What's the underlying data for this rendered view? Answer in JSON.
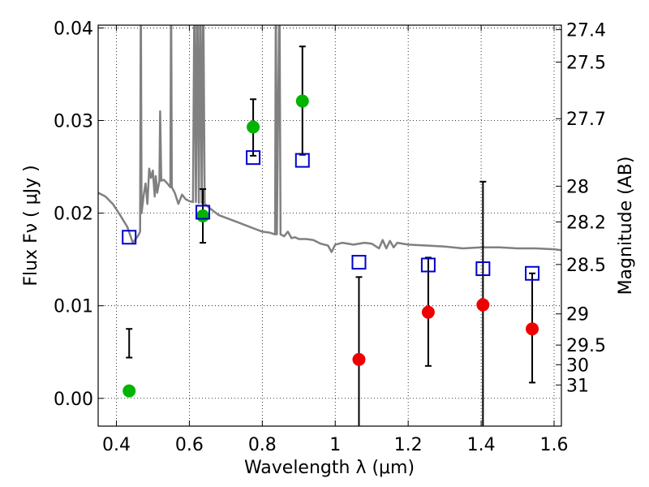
{
  "chart_data": {
    "type": "scatter",
    "xlabel": "Wavelength  λ (μm)",
    "ylabel": "Flux  Fν  ( μJy )",
    "y2label": "Magnitude (AB)",
    "xlim": [
      0.35,
      1.62
    ],
    "ylim": [
      -0.003,
      0.0403
    ],
    "grid": true,
    "x_ticks": [
      0.4,
      0.6,
      0.8,
      1.0,
      1.2,
      1.4,
      1.6
    ],
    "x_tick_labels": [
      "0.4",
      "0.6",
      "0.8",
      "1",
      "1.2",
      "1.4",
      "1.6"
    ],
    "y_ticks": [
      0.0,
      0.01,
      0.02,
      0.03,
      0.04
    ],
    "y_tick_labels": [
      "0.00",
      "0.01",
      "0.02",
      "0.03",
      "0.04"
    ],
    "mag_ticks": [
      27.4,
      27.5,
      27.7,
      28.0,
      28.2,
      28.5,
      29.0,
      29.5,
      30.0,
      31.0
    ],
    "mag_tick_labels": [
      "27.4",
      "27.5",
      "27.7",
      "28",
      "28.2",
      "28.5",
      "29",
      "29.5",
      "30",
      "31"
    ],
    "colors": {
      "green": "#00b400",
      "red": "#ee0000",
      "blue": "#0000cc",
      "model": "#808080",
      "error": "#000000"
    },
    "series": [
      {
        "marker": "circle",
        "color": "green",
        "points": [
          {
            "x": 0.435,
            "y": 0.0008,
            "err_lo": 0.0044,
            "err_hi": 0.0075
          },
          {
            "x": 0.637,
            "y": 0.0197,
            "err_lo": 0.0168,
            "err_hi": 0.0226
          },
          {
            "x": 0.775,
            "y": 0.0293,
            "err_lo": 0.0262,
            "err_hi": 0.0323
          },
          {
            "x": 0.91,
            "y": 0.0321,
            "err_lo": 0.0263,
            "err_hi": 0.038
          }
        ]
      },
      {
        "marker": "circle",
        "color": "red",
        "points": [
          {
            "x": 1.065,
            "y": 0.0042,
            "err_lo": -0.005,
            "err_hi": 0.0131
          },
          {
            "x": 1.255,
            "y": 0.0093,
            "err_lo": 0.0035,
            "err_hi": 0.0152
          },
          {
            "x": 1.405,
            "y": 0.0101,
            "err_lo": -0.005,
            "err_hi": 0.0234
          },
          {
            "x": 1.54,
            "y": 0.0075,
            "err_lo": 0.0017,
            "err_hi": 0.0135
          }
        ]
      },
      {
        "marker": "square-open",
        "color": "blue",
        "points": [
          {
            "x": 0.435,
            "y": 0.0174
          },
          {
            "x": 0.637,
            "y": 0.0201
          },
          {
            "x": 0.775,
            "y": 0.026
          },
          {
            "x": 0.91,
            "y": 0.0257
          },
          {
            "x": 1.065,
            "y": 0.0147
          },
          {
            "x": 1.255,
            "y": 0.0144
          },
          {
            "x": 1.405,
            "y": 0.014
          },
          {
            "x": 1.54,
            "y": 0.0135
          }
        ]
      }
    ],
    "model_spectrum": [
      [
        0.35,
        0.0222
      ],
      [
        0.37,
        0.0218
      ],
      [
        0.39,
        0.021
      ],
      [
        0.41,
        0.0198
      ],
      [
        0.43,
        0.0185
      ],
      [
        0.445,
        0.0168
      ],
      [
        0.46,
        0.0176
      ],
      [
        0.465,
        0.018
      ],
      [
        0.467,
        0.045
      ],
      [
        0.469,
        0.02
      ],
      [
        0.475,
        0.022
      ],
      [
        0.48,
        0.0232
      ],
      [
        0.485,
        0.021
      ],
      [
        0.49,
        0.0248
      ],
      [
        0.495,
        0.0238
      ],
      [
        0.5,
        0.0246
      ],
      [
        0.505,
        0.0218
      ],
      [
        0.508,
        0.024
      ],
      [
        0.512,
        0.0222
      ],
      [
        0.518,
        0.0235
      ],
      [
        0.52,
        0.031
      ],
      [
        0.523,
        0.0235
      ],
      [
        0.53,
        0.0236
      ],
      [
        0.54,
        0.0232
      ],
      [
        0.548,
        0.0228
      ],
      [
        0.55,
        0.045
      ],
      [
        0.552,
        0.0228
      ],
      [
        0.56,
        0.0222
      ],
      [
        0.57,
        0.021
      ],
      [
        0.58,
        0.022
      ],
      [
        0.59,
        0.0215
      ],
      [
        0.6,
        0.0213
      ],
      [
        0.61,
        0.0212
      ],
      [
        0.614,
        0.045
      ],
      [
        0.618,
        0.0212
      ],
      [
        0.622,
        0.045
      ],
      [
        0.626,
        0.0211
      ],
      [
        0.63,
        0.045
      ],
      [
        0.634,
        0.0211
      ],
      [
        0.638,
        0.045
      ],
      [
        0.642,
        0.021
      ],
      [
        0.66,
        0.0204
      ],
      [
        0.68,
        0.0198
      ],
      [
        0.7,
        0.0195
      ],
      [
        0.72,
        0.0192
      ],
      [
        0.74,
        0.0189
      ],
      [
        0.76,
        0.0186
      ],
      [
        0.78,
        0.0183
      ],
      [
        0.8,
        0.018
      ],
      [
        0.82,
        0.0179
      ],
      [
        0.835,
        0.0177
      ],
      [
        0.837,
        0.045
      ],
      [
        0.84,
        0.0177
      ],
      [
        0.847,
        0.045
      ],
      [
        0.85,
        0.0177
      ],
      [
        0.86,
        0.0175
      ],
      [
        0.87,
        0.018
      ],
      [
        0.88,
        0.0173
      ],
      [
        0.89,
        0.0174
      ],
      [
        0.9,
        0.0172
      ],
      [
        0.92,
        0.0172
      ],
      [
        0.94,
        0.0171
      ],
      [
        0.96,
        0.0167
      ],
      [
        0.98,
        0.0165
      ],
      [
        0.99,
        0.0158
      ],
      [
        1.0,
        0.0166
      ],
      [
        1.02,
        0.0168
      ],
      [
        1.05,
        0.0166
      ],
      [
        1.08,
        0.0168
      ],
      [
        1.1,
        0.0167
      ],
      [
        1.12,
        0.0162
      ],
      [
        1.13,
        0.0171
      ],
      [
        1.14,
        0.0162
      ],
      [
        1.15,
        0.017
      ],
      [
        1.16,
        0.0163
      ],
      [
        1.17,
        0.0168
      ],
      [
        1.2,
        0.0166
      ],
      [
        1.25,
        0.0165
      ],
      [
        1.3,
        0.0164
      ],
      [
        1.35,
        0.0162
      ],
      [
        1.4,
        0.0163
      ],
      [
        1.45,
        0.0163
      ],
      [
        1.5,
        0.0162
      ],
      [
        1.55,
        0.0162
      ],
      [
        1.6,
        0.0161
      ],
      [
        1.62,
        0.016
      ]
    ]
  }
}
